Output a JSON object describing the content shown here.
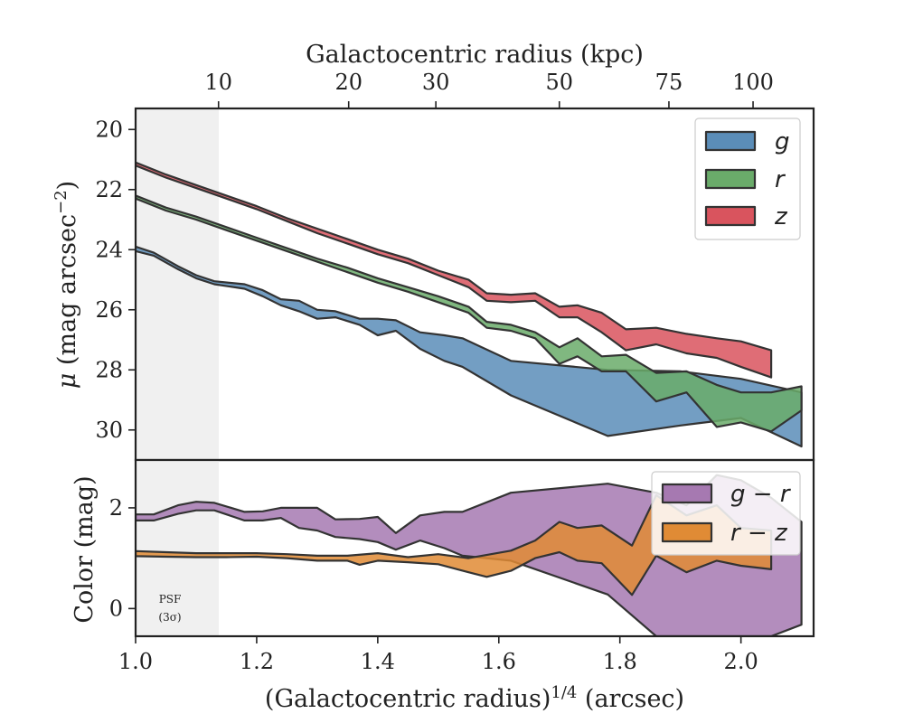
{
  "chart_data": [
    {
      "type": "area",
      "id": "surface-brightness",
      "xlim": [
        1.0,
        2.12
      ],
      "ylim": [
        31.0,
        19.3
      ],
      "y_inverted": true,
      "ylabel_prefix": "μ",
      "ylabel_units": "(mag arcsec",
      "ylabel_exponent": "−2",
      "ylabel_suffix": ")",
      "yticks": [
        20,
        22,
        24,
        26,
        28,
        30
      ],
      "top_axis": {
        "label": "Galactocentric radius (kpc)",
        "ticks": [
          {
            "label": "10",
            "x": 1.137
          },
          {
            "label": "20",
            "x": 1.352
          },
          {
            "label": "30",
            "x": 1.496
          },
          {
            "label": "50",
            "x": 1.7
          },
          {
            "label": "75",
            "x": 1.881
          },
          {
            "label": "100",
            "x": 2.02
          }
        ]
      },
      "legend_position": "top-right",
      "series": [
        {
          "name": "g",
          "color": "#5b8db8",
          "upper": [
            [
              1.0,
              23.9
            ],
            [
              1.03,
              24.1
            ],
            [
              1.07,
              24.55
            ],
            [
              1.1,
              24.85
            ],
            [
              1.13,
              25.05
            ],
            [
              1.18,
              25.15
            ],
            [
              1.21,
              25.35
            ],
            [
              1.24,
              25.65
            ],
            [
              1.27,
              25.7
            ],
            [
              1.3,
              26.0
            ],
            [
              1.33,
              26.05
            ],
            [
              1.37,
              26.3
            ],
            [
              1.4,
              26.3
            ],
            [
              1.43,
              26.35
            ],
            [
              1.47,
              26.75
            ],
            [
              1.51,
              26.85
            ],
            [
              1.54,
              26.95
            ],
            [
              1.62,
              27.7
            ],
            [
              1.78,
              28.0
            ],
            [
              1.9,
              28.05
            ],
            [
              2.0,
              28.3
            ],
            [
              2.1,
              28.75
            ]
          ],
          "lower": [
            [
              1.0,
              24.05
            ],
            [
              1.03,
              24.2
            ],
            [
              1.07,
              24.65
            ],
            [
              1.1,
              24.95
            ],
            [
              1.13,
              25.15
            ],
            [
              1.18,
              25.3
            ],
            [
              1.21,
              25.55
            ],
            [
              1.24,
              25.85
            ],
            [
              1.27,
              26.05
            ],
            [
              1.3,
              26.3
            ],
            [
              1.33,
              26.25
            ],
            [
              1.37,
              26.5
            ],
            [
              1.4,
              26.85
            ],
            [
              1.43,
              26.7
            ],
            [
              1.47,
              27.3
            ],
            [
              1.51,
              27.7
            ],
            [
              1.54,
              27.9
            ],
            [
              1.62,
              28.85
            ],
            [
              1.78,
              30.2
            ],
            [
              1.9,
              29.85
            ],
            [
              2.0,
              29.6
            ],
            [
              2.1,
              30.55
            ]
          ]
        },
        {
          "name": "r",
          "color": "#6aab6a",
          "upper": [
            [
              1.0,
              22.2
            ],
            [
              1.05,
              22.6
            ],
            [
              1.1,
              22.9
            ],
            [
              1.15,
              23.25
            ],
            [
              1.2,
              23.6
            ],
            [
              1.25,
              23.95
            ],
            [
              1.3,
              24.3
            ],
            [
              1.35,
              24.6
            ],
            [
              1.4,
              24.95
            ],
            [
              1.45,
              25.25
            ],
            [
              1.5,
              25.55
            ],
            [
              1.55,
              25.9
            ],
            [
              1.58,
              26.4
            ],
            [
              1.62,
              26.5
            ],
            [
              1.66,
              26.75
            ],
            [
              1.7,
              27.25
            ],
            [
              1.73,
              26.95
            ],
            [
              1.77,
              27.55
            ],
            [
              1.81,
              27.5
            ],
            [
              1.86,
              28.1
            ],
            [
              1.91,
              28.05
            ],
            [
              1.96,
              28.5
            ],
            [
              2.0,
              28.75
            ],
            [
              2.05,
              28.75
            ],
            [
              2.1,
              28.55
            ]
          ],
          "lower": [
            [
              1.0,
              22.3
            ],
            [
              1.05,
              22.7
            ],
            [
              1.1,
              23.0
            ],
            [
              1.15,
              23.35
            ],
            [
              1.2,
              23.7
            ],
            [
              1.25,
              24.05
            ],
            [
              1.3,
              24.4
            ],
            [
              1.35,
              24.75
            ],
            [
              1.4,
              25.1
            ],
            [
              1.45,
              25.4
            ],
            [
              1.5,
              25.75
            ],
            [
              1.55,
              26.1
            ],
            [
              1.58,
              26.6
            ],
            [
              1.62,
              26.7
            ],
            [
              1.66,
              26.95
            ],
            [
              1.7,
              27.8
            ],
            [
              1.73,
              27.55
            ],
            [
              1.77,
              28.05
            ],
            [
              1.81,
              28.05
            ],
            [
              1.86,
              29.05
            ],
            [
              1.91,
              28.75
            ],
            [
              1.96,
              29.9
            ],
            [
              2.0,
              29.75
            ],
            [
              2.05,
              30.05
            ],
            [
              2.1,
              29.35
            ]
          ]
        },
        {
          "name": "z",
          "color": "#d9545e",
          "upper": [
            [
              1.0,
              21.1
            ],
            [
              1.05,
              21.5
            ],
            [
              1.1,
              21.85
            ],
            [
              1.15,
              22.2
            ],
            [
              1.2,
              22.55
            ],
            [
              1.25,
              22.95
            ],
            [
              1.3,
              23.3
            ],
            [
              1.35,
              23.65
            ],
            [
              1.4,
              24.0
            ],
            [
              1.45,
              24.3
            ],
            [
              1.5,
              24.7
            ],
            [
              1.55,
              25.0
            ],
            [
              1.58,
              25.45
            ],
            [
              1.62,
              25.5
            ],
            [
              1.66,
              25.45
            ],
            [
              1.7,
              25.9
            ],
            [
              1.73,
              25.85
            ],
            [
              1.77,
              26.1
            ],
            [
              1.81,
              26.65
            ],
            [
              1.86,
              26.6
            ],
            [
              1.91,
              26.8
            ],
            [
              1.96,
              26.95
            ],
            [
              2.0,
              27.05
            ],
            [
              2.05,
              27.35
            ]
          ],
          "lower": [
            [
              1.0,
              21.2
            ],
            [
              1.05,
              21.6
            ],
            [
              1.1,
              21.95
            ],
            [
              1.15,
              22.3
            ],
            [
              1.2,
              22.65
            ],
            [
              1.25,
              23.05
            ],
            [
              1.3,
              23.45
            ],
            [
              1.35,
              23.8
            ],
            [
              1.4,
              24.15
            ],
            [
              1.45,
              24.45
            ],
            [
              1.5,
              24.85
            ],
            [
              1.55,
              25.25
            ],
            [
              1.58,
              25.7
            ],
            [
              1.62,
              25.75
            ],
            [
              1.66,
              25.7
            ],
            [
              1.7,
              26.25
            ],
            [
              1.73,
              26.25
            ],
            [
              1.77,
              26.75
            ],
            [
              1.81,
              27.35
            ],
            [
              1.86,
              27.15
            ],
            [
              1.91,
              27.45
            ],
            [
              1.96,
              27.6
            ],
            [
              2.0,
              27.9
            ],
            [
              2.05,
              28.25
            ]
          ]
        }
      ]
    },
    {
      "type": "area",
      "id": "color-profile",
      "xlim": [
        1.0,
        2.12
      ],
      "ylim": [
        -0.55,
        2.95
      ],
      "yticks": [
        0,
        2
      ],
      "ylabel": "Color (mag)",
      "xlabel_prefix": "(Galactocentric radius)",
      "xlabel_exponent": "1/4",
      "xlabel_suffix": " (arcsec)",
      "xticks": [
        1.0,
        1.2,
        1.4,
        1.6,
        1.8,
        2.0
      ],
      "xtick_labels": [
        "1.0",
        "1.2",
        "1.4",
        "1.6",
        "1.8",
        "2.0"
      ],
      "legend_position": "top-right",
      "series": [
        {
          "name": "g − r",
          "color": "#a679b1",
          "upper": [
            [
              1.0,
              1.87
            ],
            [
              1.03,
              1.87
            ],
            [
              1.07,
              2.05
            ],
            [
              1.1,
              2.12
            ],
            [
              1.13,
              2.1
            ],
            [
              1.18,
              1.92
            ],
            [
              1.21,
              1.93
            ],
            [
              1.24,
              2.0
            ],
            [
              1.3,
              2.0
            ],
            [
              1.33,
              1.77
            ],
            [
              1.37,
              1.78
            ],
            [
              1.4,
              1.82
            ],
            [
              1.43,
              1.5
            ],
            [
              1.47,
              1.85
            ],
            [
              1.51,
              1.92
            ],
            [
              1.54,
              1.92
            ],
            [
              1.62,
              2.3
            ],
            [
              1.78,
              2.48
            ],
            [
              1.86,
              2.3
            ],
            [
              1.91,
              2.05
            ],
            [
              1.96,
              2.65
            ],
            [
              2.0,
              2.55
            ],
            [
              2.05,
              2.2
            ],
            [
              2.1,
              1.72
            ]
          ],
          "lower": [
            [
              1.0,
              1.75
            ],
            [
              1.03,
              1.75
            ],
            [
              1.07,
              1.88
            ],
            [
              1.1,
              1.95
            ],
            [
              1.13,
              1.95
            ],
            [
              1.18,
              1.75
            ],
            [
              1.21,
              1.75
            ],
            [
              1.24,
              1.8
            ],
            [
              1.27,
              1.6
            ],
            [
              1.3,
              1.55
            ],
            [
              1.33,
              1.42
            ],
            [
              1.37,
              1.38
            ],
            [
              1.4,
              1.32
            ],
            [
              1.43,
              1.17
            ],
            [
              1.47,
              1.35
            ],
            [
              1.51,
              1.2
            ],
            [
              1.54,
              1.05
            ],
            [
              1.62,
              0.95
            ],
            [
              1.78,
              0.28
            ],
            [
              1.86,
              -0.55
            ],
            [
              1.91,
              -0.55
            ],
            [
              1.96,
              -0.55
            ],
            [
              2.0,
              -0.55
            ],
            [
              2.05,
              -0.55
            ],
            [
              2.1,
              -0.32
            ]
          ]
        },
        {
          "name": "r − z",
          "color": "#e08b35",
          "upper": [
            [
              1.0,
              1.14
            ],
            [
              1.05,
              1.12
            ],
            [
              1.1,
              1.1
            ],
            [
              1.15,
              1.1
            ],
            [
              1.2,
              1.1
            ],
            [
              1.25,
              1.08
            ],
            [
              1.3,
              1.05
            ],
            [
              1.35,
              1.05
            ],
            [
              1.4,
              1.1
            ],
            [
              1.45,
              1.02
            ],
            [
              1.5,
              1.08
            ],
            [
              1.55,
              1.0
            ],
            [
              1.62,
              1.15
            ],
            [
              1.66,
              1.35
            ],
            [
              1.7,
              1.72
            ],
            [
              1.73,
              1.6
            ],
            [
              1.77,
              1.65
            ],
            [
              1.82,
              1.25
            ],
            [
              1.86,
              2.25
            ],
            [
              1.91,
              1.85
            ],
            [
              1.96,
              2.05
            ],
            [
              2.0,
              1.6
            ],
            [
              2.05,
              1.55
            ]
          ],
          "lower": [
            [
              1.0,
              1.04
            ],
            [
              1.05,
              1.03
            ],
            [
              1.1,
              1.02
            ],
            [
              1.15,
              1.02
            ],
            [
              1.2,
              1.03
            ],
            [
              1.25,
              1.0
            ],
            [
              1.3,
              0.95
            ],
            [
              1.35,
              0.95
            ],
            [
              1.37,
              0.87
            ],
            [
              1.4,
              0.95
            ],
            [
              1.45,
              0.92
            ],
            [
              1.5,
              0.88
            ],
            [
              1.55,
              0.72
            ],
            [
              1.58,
              0.63
            ],
            [
              1.62,
              0.75
            ],
            [
              1.66,
              1.0
            ],
            [
              1.7,
              1.12
            ],
            [
              1.73,
              0.95
            ],
            [
              1.77,
              0.9
            ],
            [
              1.82,
              0.27
            ],
            [
              1.86,
              1.05
            ],
            [
              1.91,
              0.72
            ],
            [
              1.96,
              0.95
            ],
            [
              2.0,
              0.85
            ],
            [
              2.05,
              0.78
            ]
          ]
        }
      ]
    }
  ],
  "psf_band": {
    "x_start": 1.0,
    "x_end": 1.137,
    "label_line1": "PSF",
    "label_line2": "(3σ)"
  }
}
